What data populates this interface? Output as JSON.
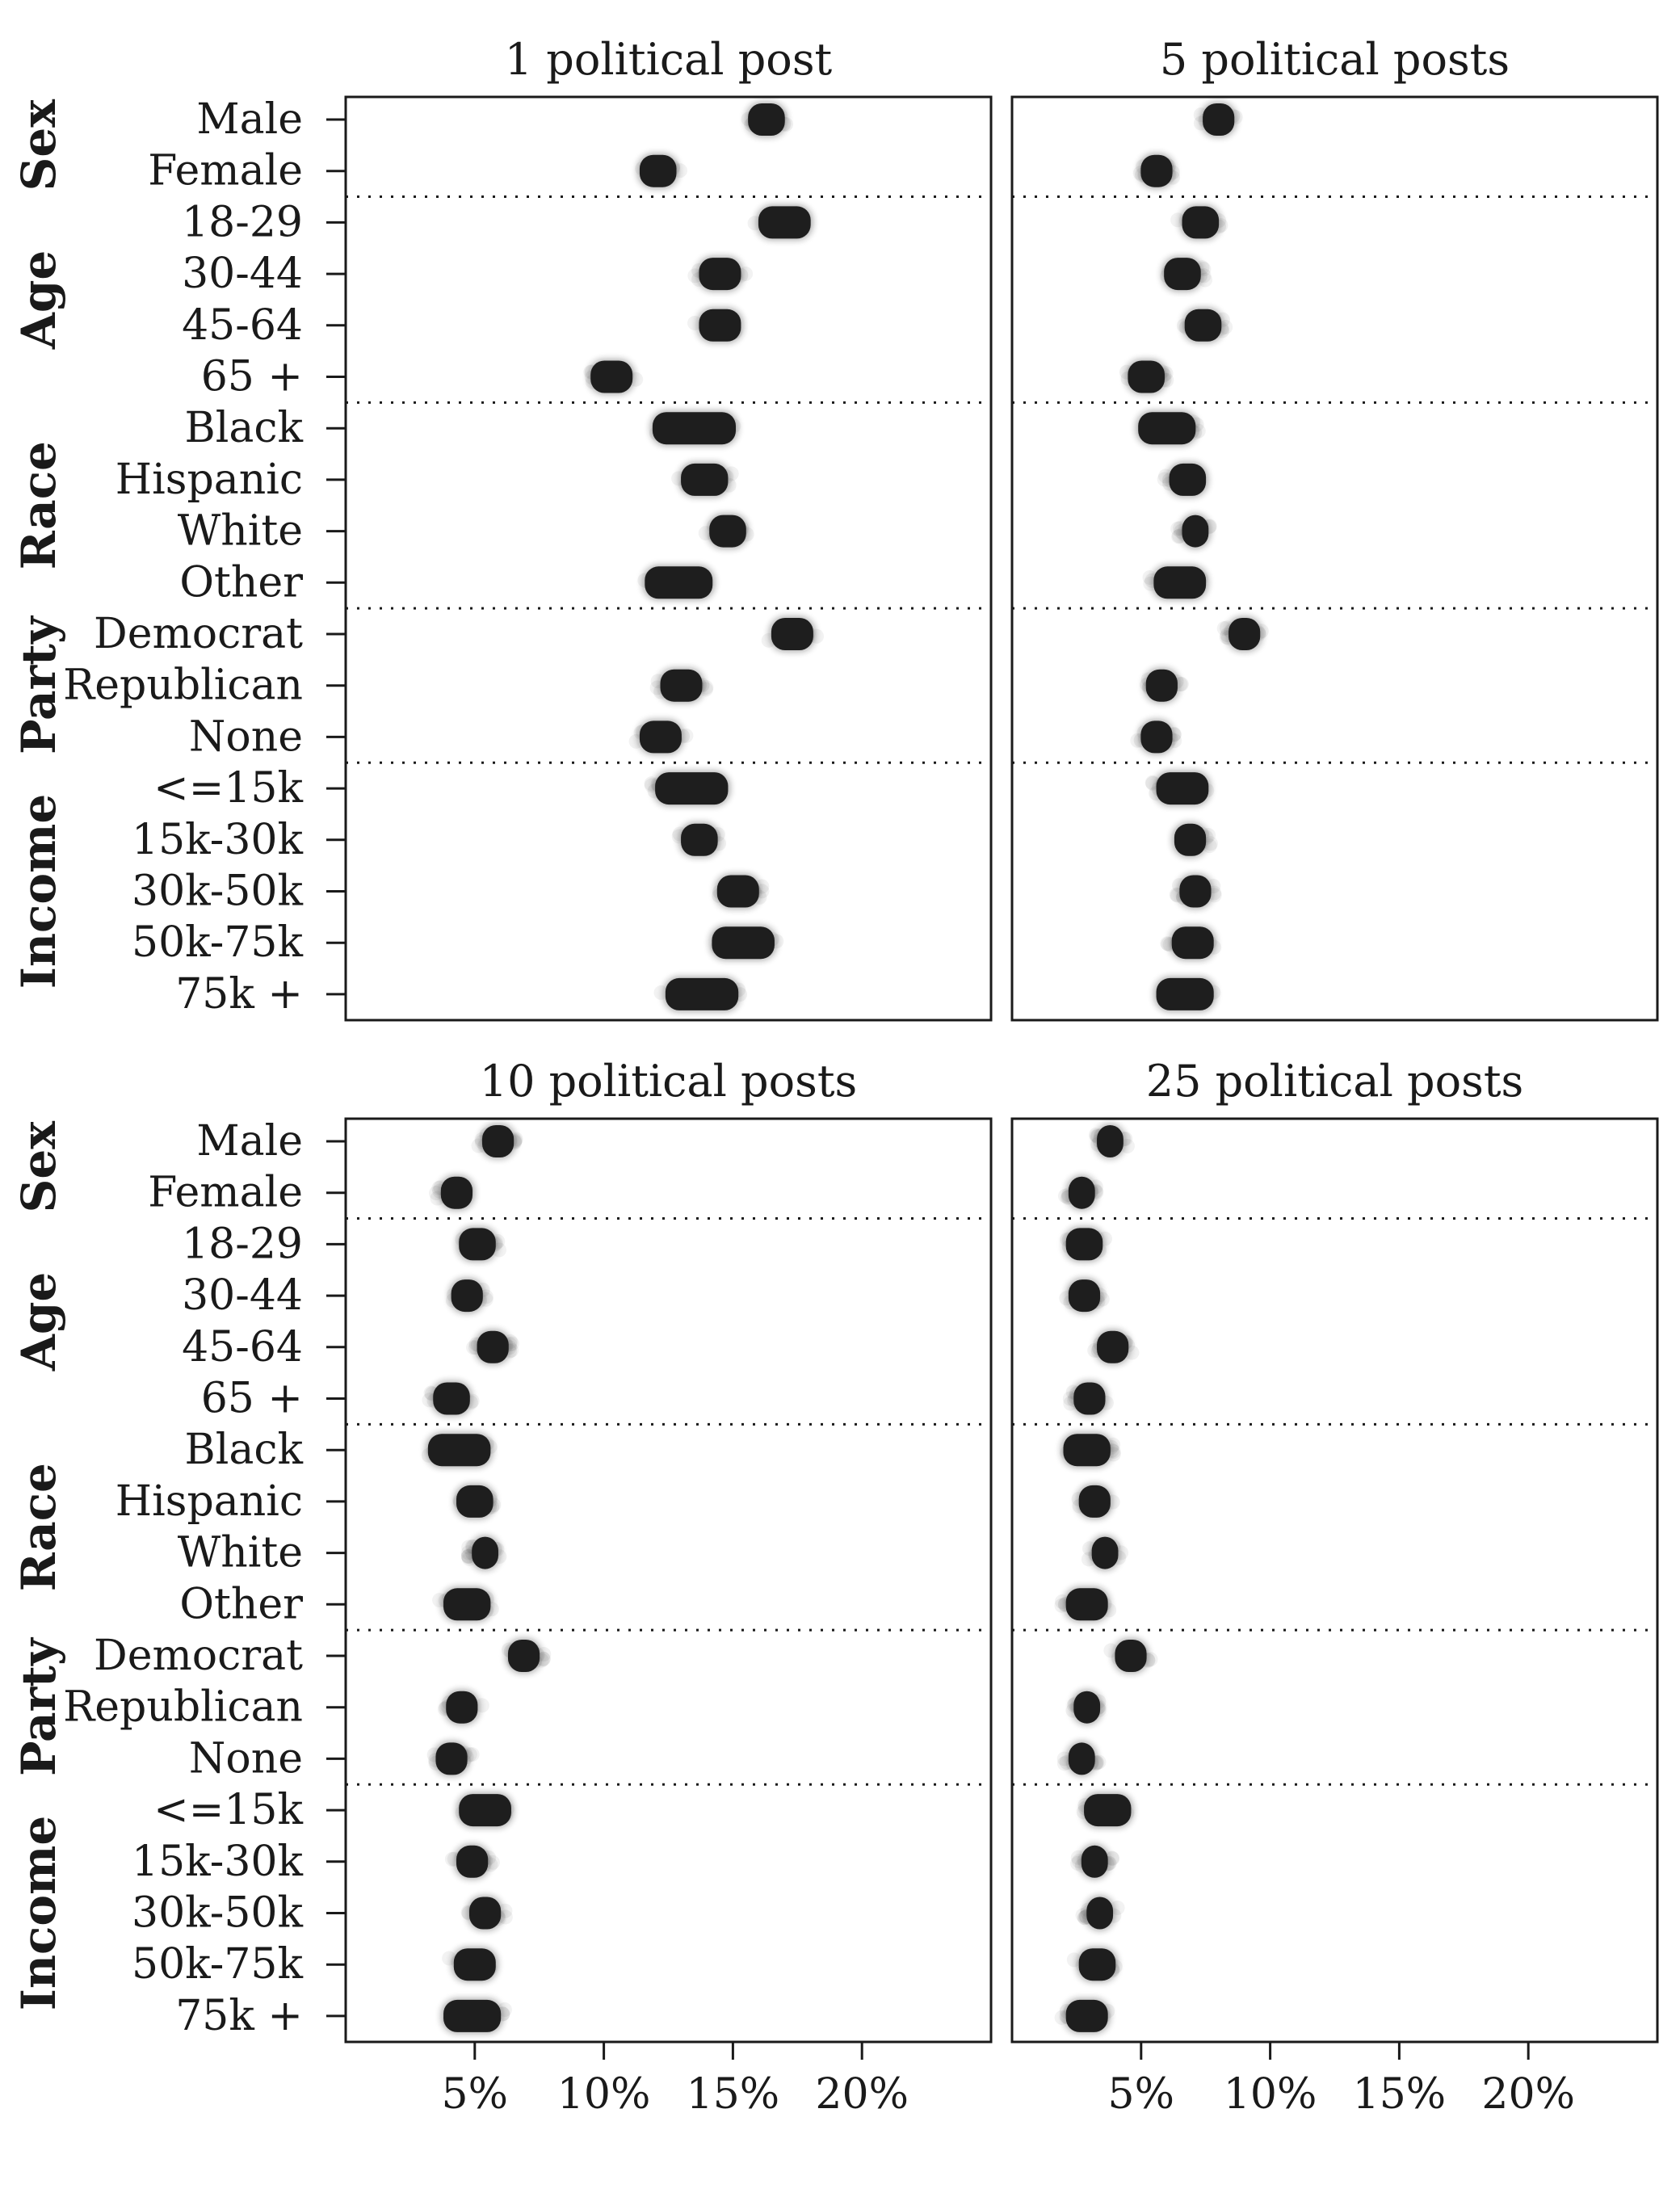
{
  "chart_data": {
    "type": "scatter",
    "description_units": "percent",
    "groups": [
      {
        "label": "Sex",
        "rows": [
          "Male",
          "Female"
        ]
      },
      {
        "label": "Age",
        "rows": [
          "18-29",
          "30-44",
          "45-64",
          "65 +"
        ]
      },
      {
        "label": "Race",
        "rows": [
          "Black",
          "Hispanic",
          "White",
          "Other"
        ]
      },
      {
        "label": "Party",
        "rows": [
          "Democrat",
          "Republican",
          "None"
        ]
      },
      {
        "label": "Income",
        "rows": [
          "<=15k",
          "15k-30k",
          "30k-50k",
          "50k-75k",
          "75k +"
        ]
      }
    ],
    "x_ticks": [
      5,
      10,
      15,
      20
    ],
    "x_tick_labels": [
      "5%",
      "10%",
      "15%",
      "20%"
    ],
    "xlim": [
      0,
      25
    ],
    "grid": false,
    "panels": [
      {
        "title": "1 political post",
        "values": [
          16.3,
          12.1,
          17.0,
          14.5,
          14.5,
          10.3,
          13.5,
          13.9,
          14.8,
          12.9,
          17.3,
          13.0,
          12.2,
          13.4,
          13.7,
          15.2,
          15.4,
          13.8
        ],
        "spread": [
          0.4,
          0.4,
          0.7,
          0.5,
          0.5,
          0.5,
          1.3,
          0.6,
          0.4,
          1.0,
          0.5,
          0.5,
          0.5,
          1.1,
          0.4,
          0.5,
          0.9,
          1.1
        ]
      },
      {
        "title": "5 political posts",
        "values": [
          8.0,
          5.6,
          7.3,
          6.6,
          7.4,
          5.2,
          6.0,
          6.8,
          7.1,
          6.5,
          9.0,
          5.8,
          5.6,
          6.6,
          6.9,
          7.1,
          7.0,
          6.7
        ],
        "spread": [
          0.3,
          0.3,
          0.4,
          0.4,
          0.4,
          0.4,
          0.8,
          0.4,
          0.2,
          0.7,
          0.3,
          0.3,
          0.3,
          0.7,
          0.3,
          0.3,
          0.5,
          0.8
        ]
      },
      {
        "title": "10 political posts",
        "values": [
          5.9,
          4.3,
          5.1,
          4.7,
          5.7,
          4.1,
          4.4,
          5.0,
          5.4,
          4.7,
          6.9,
          4.5,
          4.1,
          5.4,
          4.9,
          5.4,
          5.0,
          4.9
        ],
        "spread": [
          0.3,
          0.3,
          0.4,
          0.3,
          0.3,
          0.4,
          0.9,
          0.4,
          0.2,
          0.6,
          0.3,
          0.3,
          0.3,
          0.7,
          0.3,
          0.3,
          0.5,
          0.8
        ]
      },
      {
        "title": "25 political posts",
        "values": [
          3.8,
          2.7,
          2.8,
          2.8,
          3.9,
          3.0,
          2.9,
          3.2,
          3.6,
          2.9,
          4.6,
          2.9,
          2.7,
          3.7,
          3.2,
          3.4,
          3.3,
          2.9
        ],
        "spread": [
          0.2,
          0.2,
          0.4,
          0.3,
          0.3,
          0.3,
          0.6,
          0.3,
          0.2,
          0.5,
          0.3,
          0.2,
          0.2,
          0.6,
          0.2,
          0.2,
          0.4,
          0.5
        ]
      }
    ]
  },
  "colors": {
    "mark": "#1e1e1e",
    "axis": "#1a1a1a",
    "background": "#ffffff"
  }
}
